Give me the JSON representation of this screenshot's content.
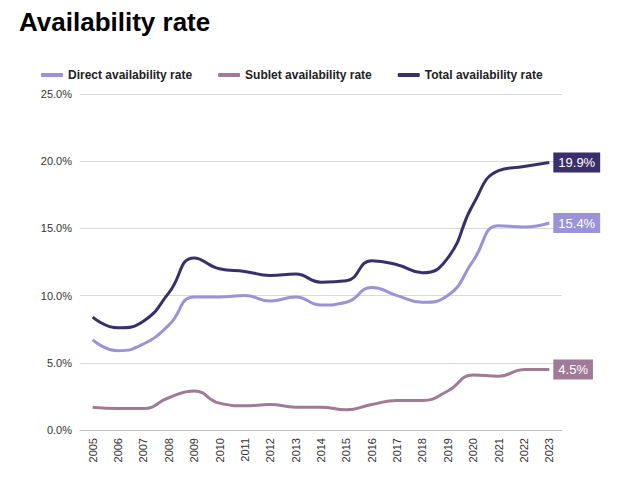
{
  "chart_data": {
    "type": "line",
    "title": "Availability rate",
    "categories": [
      "2005",
      "2006",
      "2007",
      "2008",
      "2009",
      "2010",
      "2011",
      "2012",
      "2013",
      "2014",
      "2015",
      "2016",
      "2017",
      "2018",
      "2019",
      "2020",
      "2021",
      "2022",
      "2023"
    ],
    "series": [
      {
        "name": "Direct availability rate",
        "color": "#9b93d6",
        "values": [
          6.7,
          5.9,
          6.4,
          7.8,
          9.9,
          9.9,
          10.0,
          9.6,
          9.9,
          9.3,
          9.5,
          10.6,
          10.0,
          9.5,
          10.0,
          12.6,
          15.2,
          15.1,
          15.4
        ],
        "value_labels": [
          null,
          null,
          null,
          null,
          null,
          null,
          null,
          null,
          null,
          null,
          null,
          null,
          null,
          null,
          null,
          null,
          null,
          null,
          "15.4%"
        ]
      },
      {
        "name": "Sublet availability rate",
        "color": "#a07a96",
        "values": [
          1.7,
          1.6,
          1.6,
          2.4,
          2.9,
          2.0,
          1.8,
          1.9,
          1.7,
          1.7,
          1.5,
          1.9,
          2.2,
          2.2,
          2.9,
          4.1,
          4.0,
          4.5,
          4.5
        ],
        "value_labels": [
          null,
          null,
          null,
          null,
          null,
          null,
          null,
          null,
          null,
          null,
          null,
          null,
          null,
          null,
          null,
          null,
          null,
          null,
          "4.5%"
        ]
      },
      {
        "name": "Total availability rate",
        "color": "#3b2f6b",
        "values": [
          8.4,
          7.6,
          8.1,
          10.2,
          12.8,
          12.0,
          11.8,
          11.5,
          11.6,
          11.0,
          11.1,
          12.6,
          12.3,
          11.7,
          12.8,
          16.8,
          19.3,
          19.6,
          19.9
        ],
        "value_labels": [
          null,
          null,
          null,
          null,
          null,
          null,
          null,
          null,
          null,
          null,
          null,
          null,
          null,
          null,
          null,
          null,
          null,
          null,
          "19.9%"
        ]
      }
    ],
    "ylim": [
      0,
      25
    ],
    "yticks": [
      {
        "value": 0,
        "label": "0.0%"
      },
      {
        "value": 5,
        "label": "5.0%"
      },
      {
        "value": 10,
        "label": "10.0%"
      },
      {
        "value": 15,
        "label": "15.0%"
      },
      {
        "value": 20,
        "label": "20.0%"
      },
      {
        "value": 25,
        "label": "25.0%"
      }
    ],
    "grid": true,
    "legend": "top-left",
    "data_labels": true
  }
}
